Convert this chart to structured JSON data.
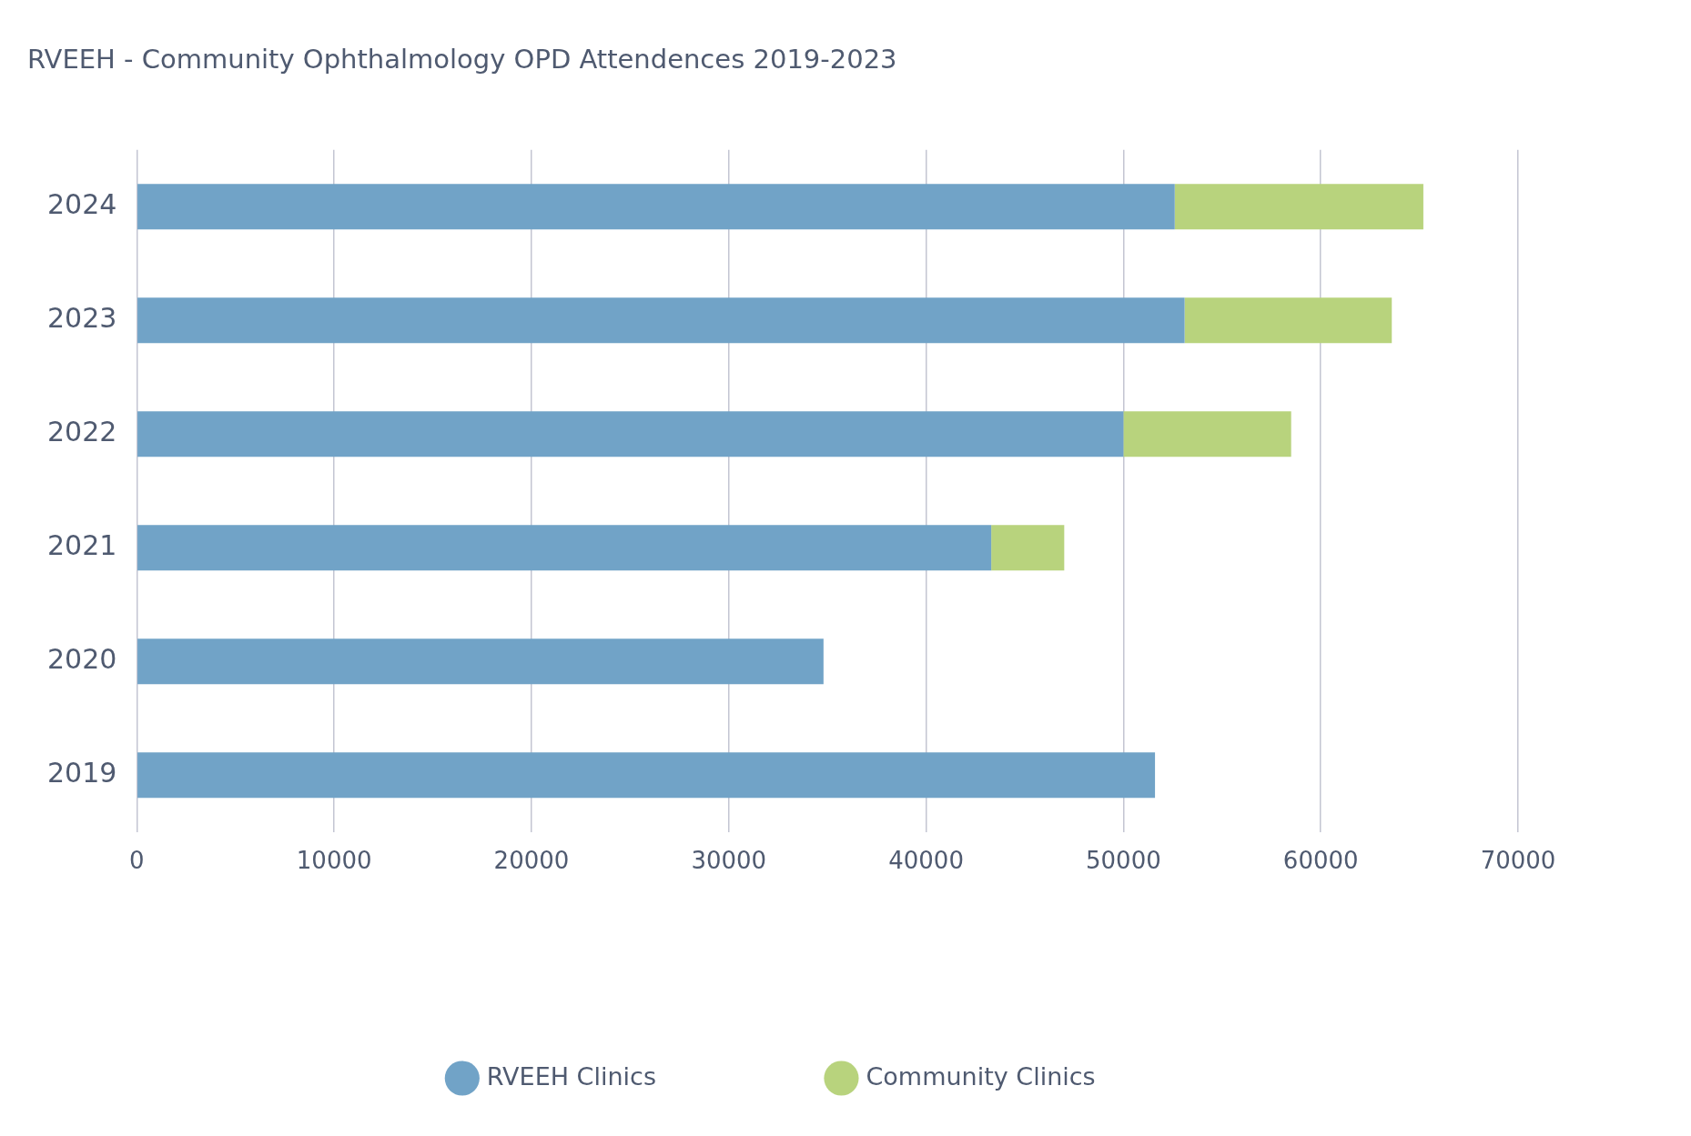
{
  "chart_data": {
    "type": "bar",
    "orientation": "horizontal",
    "stacked": true,
    "title": "RVEEH - Community Ophthalmology OPD Attendences 2019-2023",
    "categories": [
      "2024",
      "2023",
      "2022",
      "2021",
      "2020",
      "2019"
    ],
    "series": [
      {
        "name": "RVEEH Clinics",
        "color": "#71a3c7",
        "values": [
          52600,
          53100,
          50000,
          43300,
          34800,
          51600
        ]
      },
      {
        "name": "Community Clinics",
        "color": "#b8d37d",
        "values": [
          12600,
          10500,
          8500,
          3700,
          0,
          0
        ]
      }
    ],
    "xlim": [
      0,
      70000
    ],
    "xticks": [
      0,
      10000,
      20000,
      30000,
      40000,
      50000,
      60000,
      70000
    ],
    "grid": "x",
    "legend": "bottom"
  }
}
